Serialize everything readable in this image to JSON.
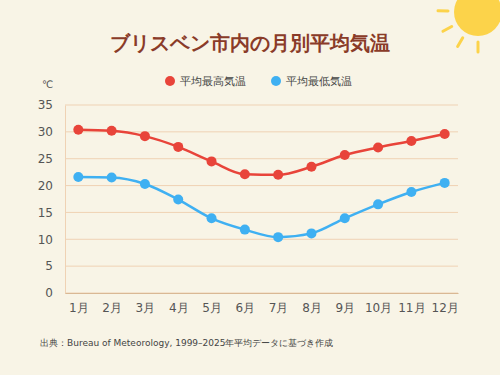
{
  "chart_data": {
    "type": "line",
    "title": "ブリスベン市内の月別平均気温",
    "y_label": "℃",
    "source": "出典：Bureau of Meteorology, 1999–2025年平均データに基づき作成",
    "categories": [
      "1月",
      "2月",
      "3月",
      "4月",
      "5月",
      "6月",
      "7月",
      "8月",
      "9月",
      "10月",
      "11月",
      "12月"
    ],
    "series": [
      {
        "name": "平均最高気温",
        "color": "#e8443a",
        "marker": "circle",
        "values": [
          30.4,
          30.2,
          29.2,
          27.2,
          24.5,
          22.1,
          22.0,
          23.5,
          25.7,
          27.1,
          28.3,
          29.6
        ]
      },
      {
        "name": "平均最低気温",
        "color": "#3fb0f2",
        "marker": "circle",
        "values": [
          21.6,
          21.5,
          20.3,
          17.4,
          13.9,
          11.8,
          10.4,
          11.1,
          13.9,
          16.5,
          18.8,
          20.5
        ]
      }
    ],
    "ylim": [
      0,
      35
    ],
    "yticks": [
      0,
      5,
      10,
      15,
      20,
      25,
      30,
      35
    ],
    "grid": true,
    "legend": "top"
  }
}
